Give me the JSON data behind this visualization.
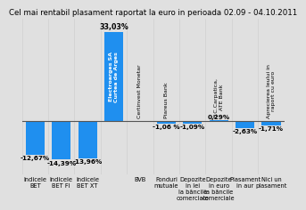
{
  "title": "Cel mai rentabil plasament raportat la euro in perioada 02.09 - 04.10.2011",
  "all_values": [
    -12.67,
    -14.39,
    -13.96,
    33.03,
    0.0,
    -1.06,
    -1.09,
    0.29,
    -2.63,
    -1.71
  ],
  "all_value_labels": [
    "-12,67%",
    "-14,39%",
    "-13,96%",
    "33,03%",
    "",
    "-1,06 %",
    "-1,09%",
    "0,29%",
    "-2,63%",
    "-1,71%"
  ],
  "bottom_labels": [
    "Indicele\nBET",
    "Indicele\nBET FI",
    "Indicele\nBET XT",
    "",
    "BVB",
    "Fonduri\nmutuale",
    "Depozite\nin lei\nla băncile\ncomerciale",
    "Depozite\nin euro\nla băncile\ncomerciale",
    "Plasament\nin aur",
    "Nici un\nplasament"
  ],
  "upper_labels": [
    "",
    "",
    "",
    "Electroarges SA\nCurtea de Arges",
    "Certinvest Monetar",
    "Piareus Bank",
    "",
    "B.C.Carpatica,\nATE Bank",
    "",
    "Aprecierea leului in\nraport cu euro"
  ],
  "bar_color": "#1f8fef",
  "bg_color": "#e0e0e0",
  "ylim_min": -20,
  "ylim_max": 38,
  "title_fontsize": 6.2,
  "tick_fontsize": 4.8,
  "label_fontsize": 5.2,
  "upper_label_fontsize": 4.5
}
